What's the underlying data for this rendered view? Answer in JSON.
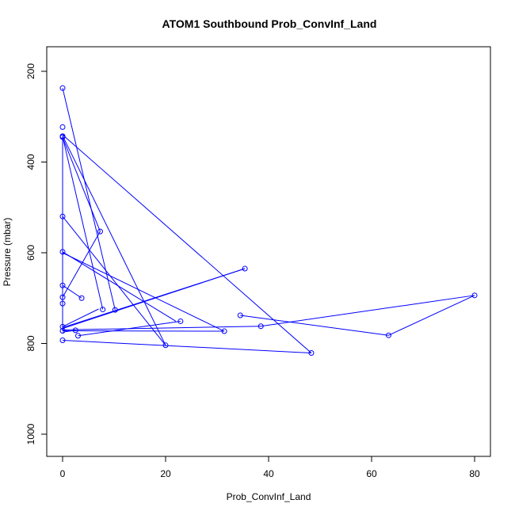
{
  "chart_data": {
    "type": "scatter",
    "title": "ATOM1 Southbound Prob_ConvInf_Land",
    "xlabel": "Prob_ConvInf_Land",
    "ylabel": "Pressure (mbar)",
    "xlim": [
      0,
      80
    ],
    "ylim": [
      1000,
      200
    ],
    "y_reversed": true,
    "x_ticks": [
      0,
      20,
      40,
      60,
      80
    ],
    "x_tick_labels": [
      "0",
      "20",
      "40",
      "60",
      "80"
    ],
    "y_ticks": [
      200,
      400,
      600,
      800,
      1000
    ],
    "y_tick_labels": [
      "200",
      "400",
      "600",
      "800",
      "1000"
    ],
    "grid": false,
    "color": "#0000ff",
    "points": [
      {
        "x": 0,
        "y": 237
      },
      {
        "x": 0,
        "y": 323
      },
      {
        "x": 0,
        "y": 343
      },
      {
        "x": 0,
        "y": 345
      },
      {
        "x": 0,
        "y": 520
      },
      {
        "x": 0,
        "y": 598
      },
      {
        "x": 0,
        "y": 672
      },
      {
        "x": 0,
        "y": 698
      },
      {
        "x": 0,
        "y": 712
      },
      {
        "x": 0,
        "y": 763
      },
      {
        "x": 0,
        "y": 772
      },
      {
        "x": 0,
        "y": 793
      },
      {
        "x": 2.5,
        "y": 771
      },
      {
        "x": 3,
        "y": 783
      },
      {
        "x": 3.7,
        "y": 700
      },
      {
        "x": 7.3,
        "y": 553
      },
      {
        "x": 7.8,
        "y": 725
      },
      {
        "x": 10.2,
        "y": 726
      },
      {
        "x": 20,
        "y": 804
      },
      {
        "x": 22.9,
        "y": 751
      },
      {
        "x": 31.4,
        "y": 773
      },
      {
        "x": 34.5,
        "y": 738
      },
      {
        "x": 35.4,
        "y": 635
      },
      {
        "x": 38.5,
        "y": 762
      },
      {
        "x": 48.3,
        "y": 821
      },
      {
        "x": 63.3,
        "y": 782
      },
      {
        "x": 80,
        "y": 694
      }
    ],
    "segments": [
      {
        "x1": 0,
        "y1": 237,
        "x2": 10.2,
        "y2": 726
      },
      {
        "x1": 0,
        "y1": 340,
        "x2": 48.3,
        "y2": 821
      },
      {
        "x1": 0,
        "y1": 342,
        "x2": 20,
        "y2": 804
      },
      {
        "x1": 0,
        "y1": 344,
        "x2": 7.8,
        "y2": 725
      },
      {
        "x1": 0,
        "y1": 346,
        "x2": 7.3,
        "y2": 553
      },
      {
        "x1": 0,
        "y1": 345,
        "x2": 0,
        "y2": 772
      },
      {
        "x1": 0,
        "y1": 520,
        "x2": 20,
        "y2": 804
      },
      {
        "x1": 0,
        "y1": 598,
        "x2": 22,
        "y2": 751
      },
      {
        "x1": 7.3,
        "y1": 553,
        "x2": 0,
        "y2": 698
      },
      {
        "x1": 0,
        "y1": 672,
        "x2": 3.7,
        "y2": 700
      },
      {
        "x1": 0,
        "y1": 600,
        "x2": 31.4,
        "y2": 773
      },
      {
        "x1": 0,
        "y1": 763,
        "x2": 7,
        "y2": 724
      },
      {
        "x1": 0,
        "y1": 765,
        "x2": 35.4,
        "y2": 635
      },
      {
        "x1": 0,
        "y1": 767,
        "x2": 35.4,
        "y2": 635
      },
      {
        "x1": 0,
        "y1": 772,
        "x2": 31.4,
        "y2": 773
      },
      {
        "x1": 0,
        "y1": 770,
        "x2": 38.5,
        "y2": 762
      },
      {
        "x1": 3,
        "y1": 783,
        "x2": 22.9,
        "y2": 751
      },
      {
        "x1": 0,
        "y1": 793,
        "x2": 48.3,
        "y2": 821
      },
      {
        "x1": 38.5,
        "y1": 762,
        "x2": 80,
        "y2": 694
      },
      {
        "x1": 34.5,
        "y1": 738,
        "x2": 63.3,
        "y2": 782
      },
      {
        "x1": 63.3,
        "y1": 782,
        "x2": 80,
        "y2": 694
      },
      {
        "x1": 0,
        "y1": 775,
        "x2": 2.5,
        "y2": 771
      }
    ]
  }
}
